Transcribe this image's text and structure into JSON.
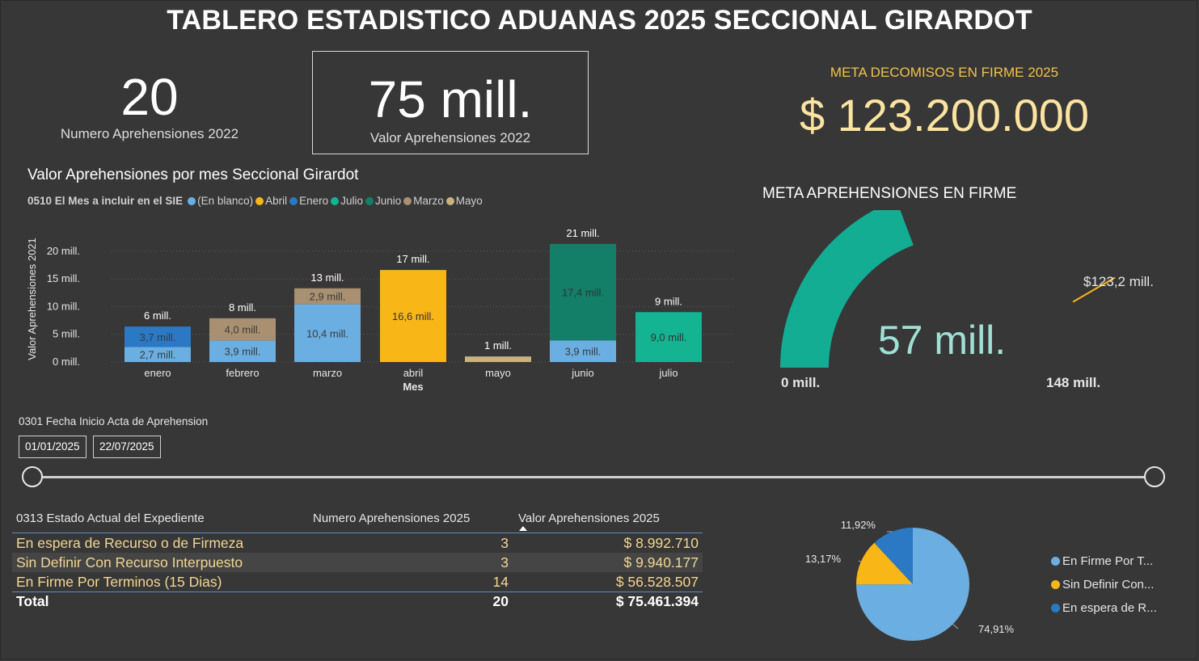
{
  "title": "TABLERO ESTADISTICO ADUANAS 2025 SECCIONAL GIRARDOT",
  "cards": {
    "count_value": "20",
    "count_label": "Numero Aprehensiones 2022",
    "value_value": "75 mill.",
    "value_label": "Valor Aprehensiones 2022"
  },
  "meta_decomisos": {
    "label": "META DECOMISOS EN FIRME 2025",
    "value": "$ 123.200.000"
  },
  "bar_chart": {
    "title": "Valor Aprehensiones por mes Seccional Girardot",
    "legend_title": "0510 El Mes a incluir en el SIE",
    "legend": [
      {
        "name": "(En blanco)",
        "color": "#6aaee2"
      },
      {
        "name": "Abril",
        "color": "#f8b617"
      },
      {
        "name": "Enero",
        "color": "#2b78c4"
      },
      {
        "name": "Julio",
        "color": "#14b391"
      },
      {
        "name": "Junio",
        "color": "#137f69"
      },
      {
        "name": "Marzo",
        "color": "#a89070"
      },
      {
        "name": "Mayo",
        "color": "#c9b27f"
      }
    ]
  },
  "gauge": {
    "title": "META APREHENSIONES EN FIRME",
    "value_label": "57 mill.",
    "min_label": "0 mill.",
    "max_label": "148 mill.",
    "target_label": "$123,2 mill.",
    "value": 57,
    "min": 0,
    "max": 148,
    "target": 123.2,
    "fill_color": "#12ad93",
    "target_color": "#f8b617"
  },
  "date_filter": {
    "label": "0301 Fecha Inicio Acta de Aprehension",
    "start": "01/01/2025",
    "end": "22/07/2025"
  },
  "table": {
    "headers": [
      "0313 Estado Actual del Expediente",
      "Numero Aprehensiones 2025",
      "Valor Aprehensiones 2025"
    ],
    "rows": [
      {
        "estado": "En espera de Recurso o de Firmeza",
        "numero": "3",
        "valor": "$ 8.992.710"
      },
      {
        "estado": "Sin Definir Con Recurso Interpuesto",
        "numero": "3",
        "valor": "$ 9.940.177"
      },
      {
        "estado": "En Firme Por Terminos (15 Dias)",
        "numero": "14",
        "valor": "$ 56.528.507"
      }
    ],
    "total": {
      "label": "Total",
      "numero": "20",
      "valor": "$ 75.461.394"
    }
  },
  "pie_legend": [
    {
      "name": "En Firme Por T...",
      "color": "#6aaee2"
    },
    {
      "name": "Sin Definir Con...",
      "color": "#f8b617"
    },
    {
      "name": "En espera de R...",
      "color": "#2b78c4"
    }
  ],
  "chart_data": [
    {
      "type": "bar",
      "stacked": true,
      "title": "Valor Aprehensiones por mes Seccional Girardot",
      "xlabel": "Mes",
      "ylabel": "Valor Aprehensiones 2021",
      "ylim": [
        0,
        24
      ],
      "yticks": [
        0,
        5,
        10,
        15,
        20
      ],
      "ytick_labels": [
        "0 mill.",
        "5 mill.",
        "10 mill.",
        "15 mill.",
        "20 mill."
      ],
      "grid": true,
      "categories": [
        "enero",
        "febrero",
        "marzo",
        "abril",
        "mayo",
        "junio",
        "julio"
      ],
      "totals": [
        6,
        8,
        13,
        17,
        1,
        21,
        9
      ],
      "total_labels": [
        "6 mill.",
        "8 mill.",
        "13 mill.",
        "17 mill.",
        "1 mill.",
        "21 mill.",
        "9 mill."
      ],
      "series": [
        {
          "name": "(En blanco)",
          "color": "#6aaee2",
          "values": [
            2.7,
            3.9,
            10.4,
            0,
            0,
            3.9,
            0
          ],
          "labels": [
            "2,7 mill.",
            "3,9 mill.",
            "10,4 mill.",
            "",
            "",
            "3,9 mill.",
            ""
          ]
        },
        {
          "name": "Enero",
          "color": "#2b78c4",
          "values": [
            3.7,
            0,
            0,
            0,
            0,
            0,
            0
          ],
          "labels": [
            "3,7 mill.",
            "",
            "",
            "",
            "",
            "",
            ""
          ]
        },
        {
          "name": "Marzo",
          "color": "#a89070",
          "values": [
            0,
            4.0,
            2.9,
            0,
            0,
            0,
            0
          ],
          "labels": [
            "",
            "4,0 mill.",
            "2,9 mill.",
            "",
            "",
            "",
            ""
          ]
        },
        {
          "name": "Abril",
          "color": "#f8b617",
          "values": [
            0,
            0,
            0,
            16.6,
            0,
            0,
            0
          ],
          "labels": [
            "",
            "",
            "",
            "16,6 mill.",
            "",
            "",
            ""
          ]
        },
        {
          "name": "Mayo",
          "color": "#c9b27f",
          "values": [
            0,
            0,
            0,
            0,
            1.0,
            0,
            0
          ],
          "labels": [
            "",
            "",
            "",
            "",
            "",
            "",
            ""
          ]
        },
        {
          "name": "Junio",
          "color": "#137f69",
          "values": [
            0,
            0,
            0,
            0,
            0,
            17.4,
            0
          ],
          "labels": [
            "",
            "",
            "",
            "",
            "",
            "17,4 mill.",
            ""
          ]
        },
        {
          "name": "Julio",
          "color": "#14b391",
          "values": [
            0,
            0,
            0,
            0,
            0,
            0,
            9.0
          ],
          "labels": [
            "",
            "",
            "",
            "",
            "",
            "",
            "9,0 mill."
          ]
        }
      ]
    },
    {
      "type": "pie",
      "categories": [
        "En Firme Por Terminos (15 Dias)",
        "Sin Definir Con Recurso Interpuesto",
        "En espera de Recurso o de Firmeza"
      ],
      "values": [
        74.91,
        13.17,
        11.92
      ],
      "labels": [
        "74,91%",
        "13,17%",
        "11,92%"
      ],
      "colors": [
        "#6aaee2",
        "#f8b617",
        "#2b78c4"
      ],
      "legend_position": "right"
    }
  ]
}
